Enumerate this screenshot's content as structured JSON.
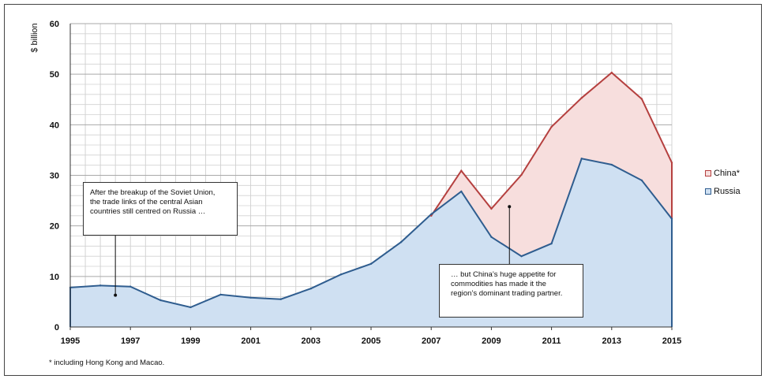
{
  "chart_data": {
    "type": "area",
    "ylabel": "$ billion",
    "ylim": [
      0,
      60
    ],
    "xlim": [
      1995,
      2015
    ],
    "yticks": [
      0,
      10,
      20,
      30,
      40,
      50,
      60
    ],
    "xticks": [
      1995,
      1997,
      1999,
      2001,
      2003,
      2005,
      2007,
      2009,
      2011,
      2013,
      2015
    ],
    "grid": true,
    "legend_position": "right",
    "x": [
      1995,
      1996,
      1997,
      1998,
      1999,
      2000,
      2001,
      2002,
      2003,
      2004,
      2005,
      2006,
      2007,
      2008,
      2009,
      2010,
      2011,
      2012,
      2013,
      2014,
      2015
    ],
    "series": [
      {
        "name": "China*",
        "line_color": "#b5403f",
        "fill_color": "#f7dedd",
        "values": [
          null,
          null,
          null,
          null,
          null,
          null,
          null,
          null,
          null,
          null,
          null,
          null,
          22.0,
          30.9,
          23.4,
          30.1,
          39.6,
          45.3,
          50.3,
          45.1,
          32.5
        ]
      },
      {
        "name": "Russia",
        "line_color": "#2f5d8f",
        "fill_color": "#cfe0f2",
        "values": [
          7.8,
          8.2,
          8.0,
          5.3,
          3.9,
          6.4,
          5.8,
          5.5,
          7.6,
          10.4,
          12.5,
          16.8,
          22.3,
          26.8,
          17.8,
          14.0,
          16.5,
          33.3,
          32.1,
          29.0,
          21.4
        ]
      }
    ],
    "annotations": [
      {
        "lines": [
          "After the breakup of the Soviet Union,",
          "the trade links of the central Asian",
          "countries still centred on Russia …"
        ],
        "point": [
          1996.5,
          6.3
        ]
      },
      {
        "lines": [
          "… but China’s huge appetite for",
          "commodities has made it the",
          "region’s dominant trading partner."
        ],
        "point": [
          2009.6,
          23.8
        ]
      }
    ],
    "footnote": "* including Hong Kong and Macao."
  }
}
